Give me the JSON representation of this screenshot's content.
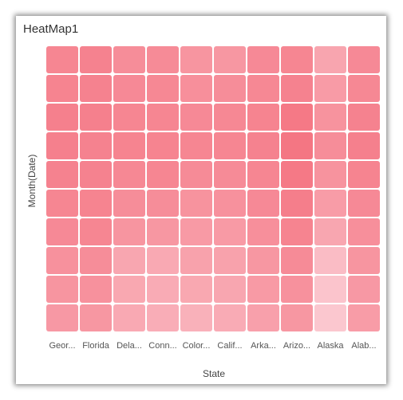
{
  "widget": {
    "title": "HeatMap1"
  },
  "chart_data": {
    "type": "heatmap",
    "title": "HeatMap1",
    "xlabel": "State",
    "ylabel": "Month(Date)",
    "x_tick_labels": [
      "Geor...",
      "Florida",
      "Dela...",
      "Conn...",
      "Color...",
      "Calif...",
      "Arka...",
      "Arizo...",
      "Alaska",
      "Alab..."
    ],
    "rows": 10,
    "value_range": [
      0,
      1
    ],
    "values": [
      [
        0.78,
        0.82,
        0.7,
        0.72,
        0.62,
        0.6,
        0.74,
        0.78,
        0.45,
        0.74
      ],
      [
        0.8,
        0.82,
        0.74,
        0.76,
        0.68,
        0.7,
        0.76,
        0.82,
        0.55,
        0.76
      ],
      [
        0.84,
        0.84,
        0.78,
        0.78,
        0.74,
        0.76,
        0.8,
        0.92,
        0.64,
        0.82
      ],
      [
        0.84,
        0.82,
        0.8,
        0.8,
        0.78,
        0.78,
        0.82,
        0.95,
        0.7,
        0.84
      ],
      [
        0.82,
        0.82,
        0.76,
        0.78,
        0.72,
        0.72,
        0.78,
        0.92,
        0.64,
        0.8
      ],
      [
        0.78,
        0.8,
        0.7,
        0.7,
        0.64,
        0.66,
        0.74,
        0.86,
        0.54,
        0.74
      ],
      [
        0.74,
        0.78,
        0.62,
        0.6,
        0.56,
        0.56,
        0.68,
        0.8,
        0.44,
        0.68
      ],
      [
        0.66,
        0.7,
        0.44,
        0.4,
        0.48,
        0.48,
        0.6,
        0.72,
        0.2,
        0.62
      ],
      [
        0.62,
        0.66,
        0.42,
        0.38,
        0.42,
        0.44,
        0.56,
        0.66,
        0.12,
        0.58
      ],
      [
        0.58,
        0.6,
        0.4,
        0.36,
        0.32,
        0.38,
        0.5,
        0.6,
        0.08,
        0.54
      ]
    ],
    "colors": {
      "low": "#fccfd6",
      "high": "#f4717f",
      "background": "#ffffff"
    },
    "grid": false,
    "legend": "none"
  }
}
